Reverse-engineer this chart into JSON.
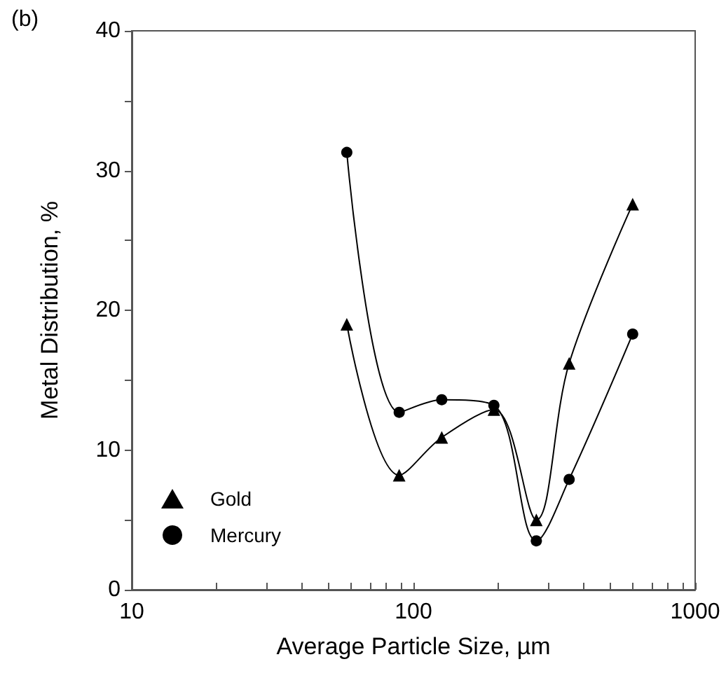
{
  "chart_data": {
    "type": "line",
    "annotations": [
      "(b)"
    ],
    "xlabel": "Average Particle Size, µm",
    "ylabel": "Metal Distribution, %",
    "x": [
      58,
      89,
      126,
      193,
      273,
      357,
      600
    ],
    "series": [
      {
        "name": "Gold",
        "color": "#000000",
        "marker": "triangle",
        "values": [
          19.0,
          8.2,
          10.9,
          12.9,
          5.0,
          16.2,
          27.6
        ]
      },
      {
        "name": "Mercury",
        "color": "#000000",
        "marker": "circle",
        "values": [
          31.3,
          12.7,
          13.6,
          13.2,
          3.5,
          7.9,
          18.3
        ]
      }
    ],
    "log": "x",
    "xlim": [
      10,
      1000
    ],
    "xticks": [
      10,
      {
        "value": 20,
        "label": null
      },
      {
        "value": 30,
        "label": null
      },
      {
        "value": 40,
        "label": null
      },
      {
        "value": 50,
        "label": null
      },
      {
        "value": 60,
        "label": null
      },
      {
        "value": 70,
        "label": null
      },
      {
        "value": 80,
        "label": null
      },
      {
        "value": 90,
        "label": null
      },
      100,
      {
        "value": 200,
        "label": null
      },
      {
        "value": 300,
        "label": null
      },
      {
        "value": 400,
        "label": null
      },
      {
        "value": 500,
        "label": null
      },
      {
        "value": 600,
        "label": null
      },
      {
        "value": 700,
        "label": null
      },
      {
        "value": 800,
        "label": null
      },
      {
        "value": 900,
        "label": null
      },
      1000
    ],
    "ylim": [
      0,
      40
    ],
    "yticks": [
      0,
      {
        "value": 5,
        "label": null
      },
      10,
      {
        "value": 15,
        "label": null
      },
      20,
      {
        "value": 25,
        "label": null
      },
      30,
      {
        "value": 35,
        "label": null
      },
      40
    ],
    "grid": false,
    "legend": "bottom left",
    "line_style": "solid"
  }
}
